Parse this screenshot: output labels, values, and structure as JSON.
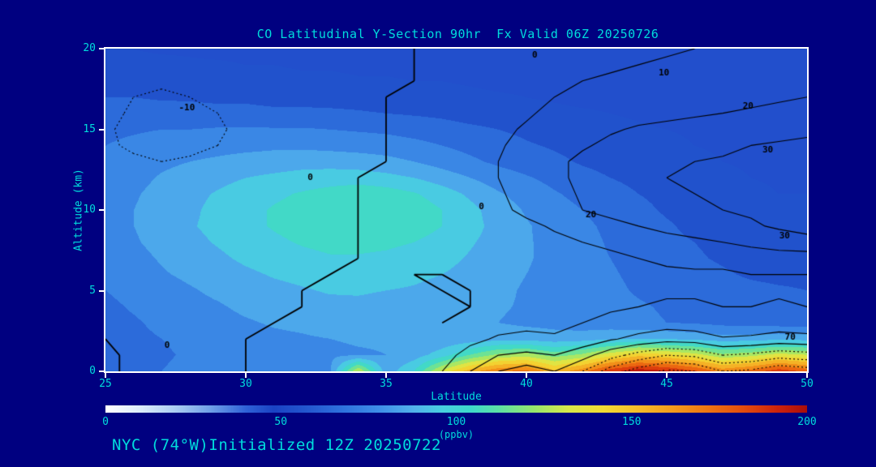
{
  "colors": {
    "background": "#000080",
    "text": "#00dcdc",
    "axis": "#ffffff",
    "contour": "#000000"
  },
  "title": "CO Latitudinal Y-Section 90hr  Fx Valid 06Z 20250726",
  "footer": "NYC (74°W)Initialized 12Z 20250722",
  "axes": {
    "x_label": "Latitude",
    "y_label": "Altitude (km)",
    "x_ticks": [
      25,
      30,
      35,
      40,
      45,
      50
    ],
    "y_ticks": [
      0,
      5,
      10,
      15,
      20
    ],
    "x_range": [
      25,
      50
    ],
    "y_range": [
      0,
      20
    ]
  },
  "colorbar": {
    "label": "(ppbv)",
    "ticks": [
      0,
      50,
      100,
      150,
      200
    ],
    "range": [
      0,
      200
    ],
    "stops": [
      [
        0,
        "#ffffff"
      ],
      [
        10,
        "#dcedfa"
      ],
      [
        20,
        "#aacdf2"
      ],
      [
        30,
        "#6f9fe8"
      ],
      [
        40,
        "#2f62d8"
      ],
      [
        48,
        "#1a43c4"
      ],
      [
        58,
        "#2458d0"
      ],
      [
        68,
        "#2f73de"
      ],
      [
        78,
        "#3f8fe8"
      ],
      [
        88,
        "#52b2ec"
      ],
      [
        96,
        "#48cfe0"
      ],
      [
        104,
        "#3ed8cc"
      ],
      [
        112,
        "#5ce0a6"
      ],
      [
        122,
        "#96e66e"
      ],
      [
        132,
        "#d8e84a"
      ],
      [
        142,
        "#f2dc34"
      ],
      [
        152,
        "#f6bc2a"
      ],
      [
        162,
        "#f49a1c"
      ],
      [
        172,
        "#ee7412"
      ],
      [
        182,
        "#e44c0e"
      ],
      [
        192,
        "#cc220c"
      ],
      [
        200,
        "#aa0e0a"
      ]
    ]
  },
  "chart_data": {
    "type": "heatmap",
    "title": "CO Latitudinal Y-Section 90hr  Fx Valid 06Z 20250726",
    "xlabel": "Latitude",
    "ylabel": "Altitude (km)",
    "units": "ppbv",
    "x": {
      "min": 25,
      "max": 50,
      "step": 1
    },
    "y": {
      "min": 0,
      "max": 20,
      "step": 1
    },
    "row_order": "bottom-up: first row is altitude 0 km, last row 20 km",
    "fill_levels_interval": 10,
    "fill_grid": [
      [
        67,
        68,
        70,
        72,
        73,
        75,
        76,
        78,
        79,
        130,
        84,
        100,
        132,
        155,
        168,
        172,
        152,
        166,
        186,
        196,
        191,
        181,
        166,
        173,
        186,
        176
      ],
      [
        66,
        67,
        69,
        71,
        73,
        74,
        76,
        77,
        78,
        79,
        80,
        85,
        95,
        110,
        122,
        125,
        115,
        122,
        136,
        146,
        142,
        134,
        122,
        126,
        134,
        130
      ],
      [
        66,
        68,
        70,
        72,
        74,
        76,
        78,
        79,
        80,
        81,
        81,
        81,
        82,
        84,
        86,
        86,
        84,
        85,
        88,
        90,
        89,
        87,
        84,
        85,
        87,
        86
      ],
      [
        67,
        69,
        72,
        74,
        77,
        79,
        81,
        82,
        84,
        84,
        84,
        83,
        82,
        81,
        80,
        78,
        77,
        75,
        74,
        72,
        70,
        69,
        67,
        66,
        65,
        64
      ],
      [
        68,
        71,
        74,
        77,
        79,
        82,
        84,
        86,
        87,
        88,
        87,
        86,
        85,
        83,
        81,
        79,
        77,
        75,
        73,
        71,
        69,
        67,
        65,
        64,
        63,
        62
      ],
      [
        70,
        73,
        76,
        79,
        82,
        85,
        87,
        89,
        91,
        91,
        90,
        89,
        87,
        85,
        82,
        79,
        77,
        74,
        72,
        69,
        67,
        65,
        63,
        62,
        61,
        60
      ],
      [
        72,
        75,
        79,
        82,
        85,
        88,
        91,
        93,
        95,
        95,
        94,
        92,
        90,
        87,
        83,
        80,
        77,
        74,
        71,
        68,
        65,
        63,
        61,
        59,
        58,
        58
      ],
      [
        74,
        77,
        81,
        85,
        88,
        92,
        95,
        97,
        99,
        99,
        98,
        96,
        93,
        89,
        85,
        81,
        77,
        73,
        70,
        67,
        64,
        61,
        59,
        57,
        56,
        56
      ],
      [
        75,
        79,
        83,
        87,
        91,
        95,
        98,
        101,
        103,
        103,
        102,
        100,
        96,
        91,
        86,
        81,
        77,
        73,
        69,
        66,
        62,
        60,
        58,
        56,
        54,
        54
      ],
      [
        76,
        80,
        84,
        89,
        93,
        97,
        101,
        104,
        106,
        108,
        107,
        105,
        100,
        94,
        86,
        81,
        76,
        72,
        68,
        64,
        61,
        58,
        56,
        54,
        52,
        52
      ],
      [
        76,
        80,
        84,
        88,
        93,
        97,
        101,
        104,
        107,
        110,
        109,
        106,
        100,
        93,
        85,
        79,
        74,
        70,
        66,
        62,
        59,
        57,
        55,
        53,
        51,
        51
      ],
      [
        75,
        79,
        83,
        87,
        91,
        95,
        98,
        101,
        104,
        107,
        105,
        101,
        95,
        88,
        81,
        76,
        71,
        67,
        63,
        60,
        58,
        56,
        54,
        52,
        50,
        50
      ],
      [
        74,
        77,
        81,
        84,
        87,
        90,
        92,
        94,
        95,
        95,
        93,
        90,
        85,
        80,
        75,
        71,
        67,
        63,
        60,
        58,
        56,
        54,
        52,
        50,
        49,
        49
      ],
      [
        72,
        75,
        78,
        80,
        82,
        84,
        85,
        86,
        86,
        85,
        83,
        80,
        76,
        72,
        68,
        65,
        62,
        59,
        57,
        55,
        53,
        52,
        50,
        49,
        48,
        48
      ],
      [
        70,
        72,
        74,
        75,
        76,
        77,
        78,
        78,
        77,
        76,
        75,
        73,
        70,
        67,
        64,
        61,
        59,
        57,
        55,
        53,
        52,
        50,
        49,
        48,
        47,
        47
      ],
      [
        68,
        69,
        70,
        70,
        71,
        71,
        71,
        71,
        70,
        69,
        68,
        66,
        64,
        62,
        60,
        58,
        56,
        54,
        52,
        51,
        50,
        49,
        48,
        47,
        46,
        46
      ],
      [
        64,
        64,
        64,
        63,
        63,
        63,
        62,
        62,
        62,
        61,
        60,
        59,
        58,
        56,
        55,
        53,
        52,
        51,
        50,
        49,
        48,
        47,
        46,
        46,
        45,
        45
      ],
      [
        60,
        60,
        59,
        59,
        58,
        58,
        57,
        57,
        56,
        56,
        55,
        54,
        53,
        52,
        51,
        50,
        49,
        48,
        48,
        47,
        46,
        46,
        45,
        44,
        44,
        44
      ],
      [
        56,
        55,
        55,
        54,
        54,
        53,
        53,
        52,
        52,
        51,
        51,
        50,
        50,
        49,
        48,
        48,
        47,
        46,
        46,
        45,
        45,
        44,
        44,
        43,
        43,
        43
      ],
      [
        53,
        52,
        52,
        51,
        51,
        50,
        50,
        49,
        49,
        48,
        48,
        47,
        47,
        46,
        46,
        45,
        45,
        44,
        44,
        44,
        43,
        43,
        43,
        42,
        42,
        42
      ],
      [
        50,
        50,
        49,
        49,
        48,
        48,
        47,
        47,
        46,
        46,
        46,
        45,
        45,
        44,
        44,
        43,
        43,
        43,
        42,
        42,
        42,
        42,
        41,
        41,
        41,
        41
      ]
    ],
    "overlay_contours": {
      "levels": [
        -10,
        0,
        10,
        20,
        30,
        40,
        50,
        60,
        70
      ],
      "negative_style": "dotted",
      "grid": [
        [
          1,
          -1,
          -2,
          -2,
          -1,
          0,
          1,
          1,
          2,
          2,
          3,
          5,
          10,
          20,
          30,
          35,
          30,
          40,
          55,
          65,
          72,
          70,
          60,
          62,
          68,
          65
        ],
        [
          1,
          -1,
          -2,
          -2,
          -1,
          0,
          1,
          1,
          2,
          2,
          3,
          4,
          7,
          13,
          20,
          22,
          20,
          26,
          36,
          44,
          50,
          48,
          40,
          42,
          46,
          44
        ],
        [
          0,
          -1,
          -1,
          -1,
          0,
          0,
          1,
          1,
          1,
          2,
          2,
          3,
          5,
          8,
          11,
          12,
          11,
          14,
          19,
          23,
          26,
          25,
          21,
          22,
          24,
          23
        ],
        [
          -1,
          -1,
          -1,
          -1,
          -1,
          0,
          0,
          1,
          1,
          1,
          1,
          1,
          0,
          2,
          7,
          8,
          8,
          10,
          12,
          14,
          16,
          15,
          13,
          13,
          15,
          14
        ],
        [
          -1,
          -1,
          -1,
          -1,
          -1,
          -1,
          0,
          0,
          1,
          2,
          2,
          2,
          1,
          0,
          5,
          6,
          6,
          7,
          9,
          10,
          11,
          11,
          10,
          10,
          11,
          10
        ],
        [
          -1,
          -1,
          -1,
          -1,
          -1,
          -1,
          -1,
          0,
          1,
          2,
          2,
          1,
          0,
          0,
          4,
          5,
          5,
          6,
          7,
          8,
          9,
          9,
          8,
          8,
          9,
          9
        ],
        [
          -1,
          -1,
          -1,
          -1,
          -1,
          -1,
          -1,
          -1,
          0,
          1,
          1,
          0,
          0,
          1,
          3,
          4,
          5,
          6,
          7,
          8,
          9,
          9,
          9,
          10,
          10,
          10
        ],
        [
          -2,
          -1,
          -1,
          -1,
          0,
          0,
          0,
          0,
          0,
          0,
          1,
          1,
          1,
          2,
          3,
          4,
          6,
          7,
          8,
          10,
          11,
          12,
          12,
          13,
          14,
          14
        ],
        [
          -2,
          -2,
          -1,
          -1,
          0,
          0,
          0,
          0,
          0,
          0,
          1,
          1,
          2,
          2,
          4,
          6,
          8,
          10,
          12,
          14,
          16,
          18,
          20,
          23,
          26,
          28
        ],
        [
          -3,
          -2,
          -2,
          -1,
          -1,
          0,
          0,
          0,
          0,
          0,
          1,
          1,
          2,
          3,
          5,
          8,
          11,
          14,
          17,
          20,
          23,
          25,
          27,
          29,
          31,
          32
        ],
        [
          -4,
          -3,
          -2,
          -2,
          -1,
          -1,
          0,
          0,
          0,
          0,
          1,
          1,
          2,
          4,
          8,
          12,
          16,
          20,
          23,
          26,
          28,
          29,
          30,
          31,
          32,
          33
        ],
        [
          -5,
          -4,
          -3,
          -2,
          -2,
          -1,
          -1,
          0,
          0,
          0,
          1,
          1,
          3,
          5,
          9,
          13,
          17,
          21,
          24,
          27,
          29,
          30,
          31,
          32,
          33,
          34
        ],
        [
          -6,
          -5,
          -4,
          -3,
          -2,
          -2,
          -1,
          -1,
          0,
          0,
          1,
          1,
          3,
          6,
          10,
          14,
          18,
          22,
          25,
          28,
          30,
          31,
          32,
          33,
          34,
          35
        ],
        [
          -8,
          -9,
          -10,
          -9,
          -7,
          -5,
          -3,
          -2,
          -1,
          0,
          0,
          1,
          3,
          6,
          10,
          14,
          18,
          22,
          25,
          27,
          29,
          30,
          31,
          32,
          33,
          34
        ],
        [
          -9,
          -11,
          -12,
          -12,
          -10,
          -7,
          -4,
          -2,
          -1,
          0,
          0,
          1,
          3,
          6,
          9,
          13,
          16,
          19,
          22,
          24,
          26,
          27,
          28,
          30,
          31,
          32
        ],
        [
          -9,
          -12,
          -13,
          -13,
          -11,
          -8,
          -5,
          -3,
          -1,
          0,
          0,
          1,
          3,
          5,
          8,
          11,
          14,
          17,
          19,
          21,
          22,
          23,
          24,
          26,
          27,
          28
        ],
        [
          -8,
          -11,
          -13,
          -12,
          -10,
          -8,
          -5,
          -3,
          -2,
          -1,
          0,
          1,
          2,
          4,
          7,
          9,
          12,
          14,
          16,
          17,
          18,
          19,
          20,
          21,
          22,
          23
        ],
        [
          -8,
          -10,
          -11,
          -10,
          -9,
          -7,
          -5,
          -3,
          -2,
          -1,
          0,
          1,
          2,
          4,
          6,
          8,
          10,
          12,
          13,
          14,
          15,
          16,
          17,
          18,
          19,
          20
        ],
        [
          -7,
          -8,
          -9,
          -8,
          -7,
          -6,
          -4,
          -3,
          -2,
          -1,
          0,
          0,
          1,
          3,
          5,
          7,
          8,
          10,
          11,
          12,
          13,
          14,
          15,
          16,
          17,
          18
        ],
        [
          -6,
          -7,
          -7,
          -7,
          -6,
          -5,
          -4,
          -3,
          -2,
          -1,
          0,
          0,
          1,
          2,
          4,
          5,
          6,
          8,
          9,
          10,
          11,
          12,
          13,
          14,
          15,
          16
        ],
        [
          -5,
          -6,
          -6,
          -6,
          -5,
          -4,
          -3,
          -2,
          -2,
          -1,
          0,
          0,
          1,
          2,
          3,
          4,
          5,
          6,
          7,
          8,
          9,
          10,
          11,
          12,
          13,
          14
        ]
      ],
      "labels": [
        {
          "text": "-10",
          "lat": 27.9,
          "alt": 16.3
        },
        {
          "text": "0",
          "lat": 40.3,
          "alt": 19.6
        },
        {
          "text": "10",
          "lat": 44.9,
          "alt": 18.5
        },
        {
          "text": "20",
          "lat": 47.9,
          "alt": 16.4
        },
        {
          "text": "30",
          "lat": 48.6,
          "alt": 13.7
        },
        {
          "text": "0",
          "lat": 32.3,
          "alt": 12.0
        },
        {
          "text": "0",
          "lat": 38.4,
          "alt": 10.2
        },
        {
          "text": "20",
          "lat": 42.3,
          "alt": 9.7
        },
        {
          "text": "30",
          "lat": 49.2,
          "alt": 8.4
        },
        {
          "text": "70",
          "lat": 49.4,
          "alt": 2.1
        },
        {
          "text": "0",
          "lat": 27.2,
          "alt": 1.6
        }
      ]
    }
  }
}
